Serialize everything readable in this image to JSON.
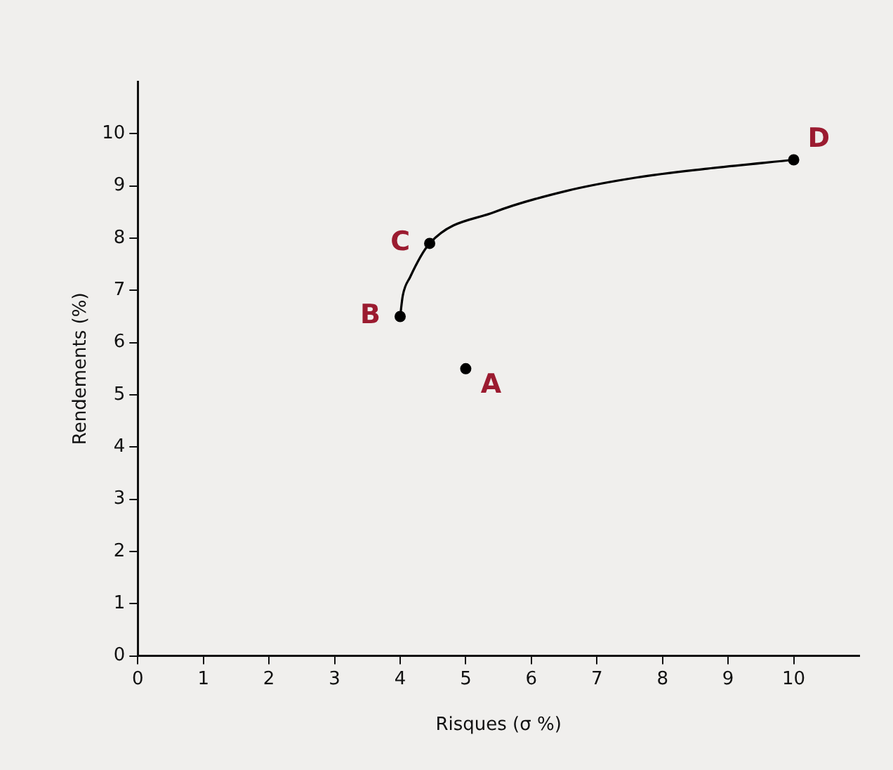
{
  "chart_data": {
    "type": "scatter",
    "xlabel": "Risques (σ %)",
    "ylabel": "Rendements (%)",
    "xlim": [
      0,
      11
    ],
    "ylim": [
      0,
      11
    ],
    "xticks": [
      0,
      1,
      2,
      3,
      4,
      5,
      6,
      7,
      8,
      9,
      10
    ],
    "yticks": [
      0,
      1,
      2,
      3,
      4,
      5,
      6,
      7,
      8,
      9,
      10
    ],
    "grid": false,
    "legend": false,
    "marker": "circle",
    "series": [
      {
        "type": "line",
        "color": "#000000",
        "marker": "none",
        "x": [
          4,
          4.04,
          4.15,
          4.45,
          5.44,
          6.52,
          7.6,
          8.68,
          10
        ],
        "values": [
          6.5,
          6.9,
          7.25,
          7.9,
          8.5,
          8.9,
          9.16,
          9.33,
          9.5
        ]
      },
      {
        "type": "scatter",
        "color": "#000000",
        "x": [
          5,
          4,
          4.45,
          10
        ],
        "values": [
          5.5,
          6.5,
          7.9,
          9.5
        ]
      }
    ],
    "annotations": [
      {
        "text": "A",
        "x": 5,
        "y": 5.5
      },
      {
        "text": "B",
        "x": 4,
        "y": 6.5
      },
      {
        "text": "C",
        "x": 4.45,
        "y": 7.9
      },
      {
        "text": "D",
        "x": 10,
        "y": 9.5
      }
    ]
  }
}
